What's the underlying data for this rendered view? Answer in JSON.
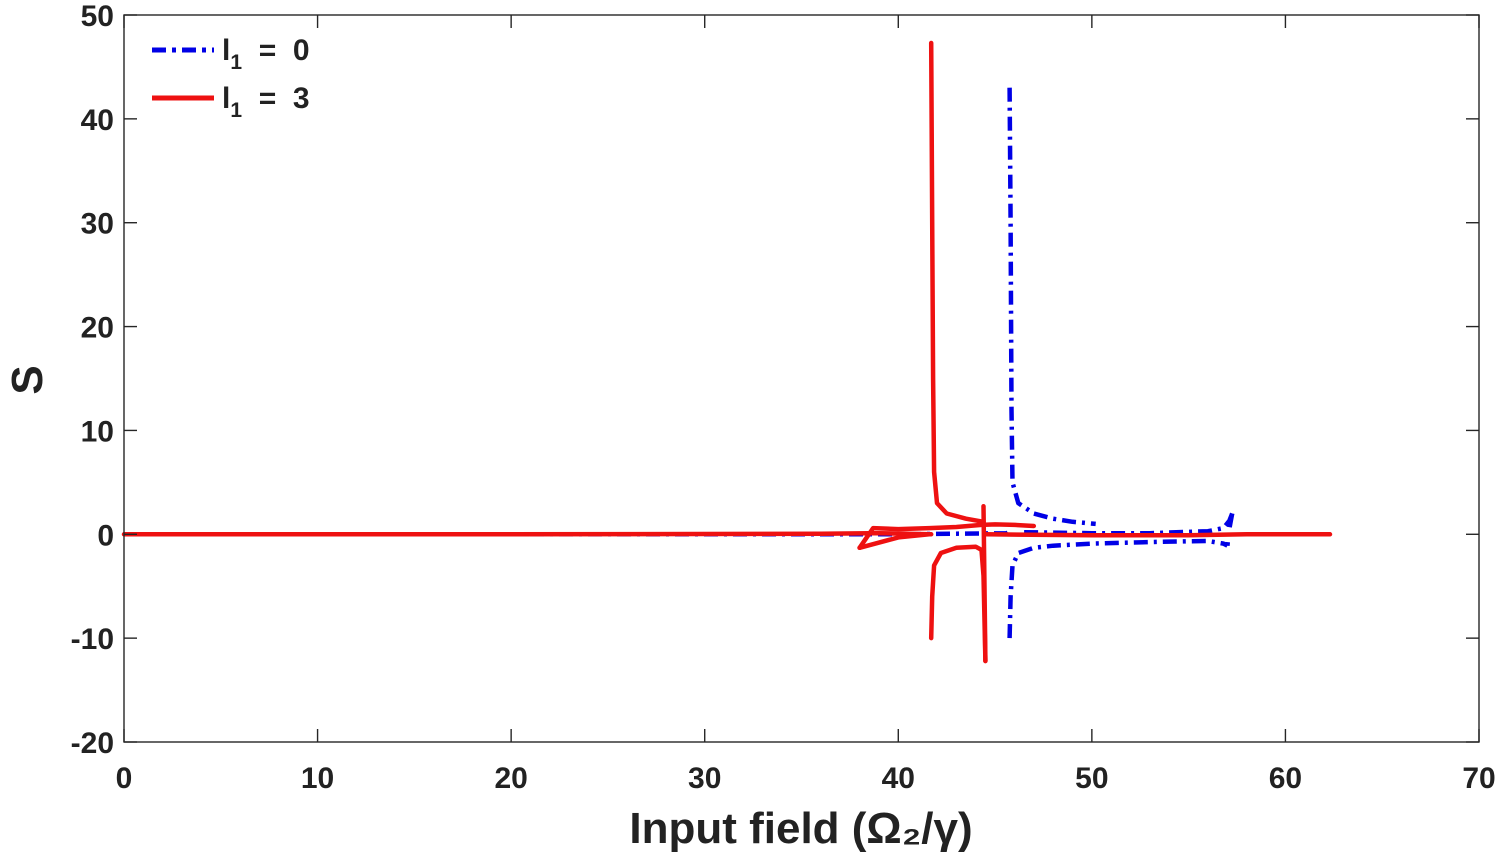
{
  "chart_data": {
    "type": "line",
    "title": "",
    "xlabel": "Input  field  (Ω₂/γ)",
    "ylabel": "S",
    "xlim": [
      0,
      70
    ],
    "ylim": [
      -20,
      50
    ],
    "xticks": [
      0,
      10,
      20,
      30,
      40,
      50,
      60,
      70
    ],
    "yticks": [
      -20,
      -10,
      0,
      10,
      20,
      30,
      40,
      50
    ],
    "xtick_labels": [
      "0",
      "10",
      "20",
      "30",
      "40",
      "50",
      "60",
      "70"
    ],
    "ytick_labels": [
      "-20",
      "-10",
      "0",
      "10",
      "20",
      "30",
      "40",
      "50"
    ],
    "grid": false,
    "legend_position": "top-left",
    "series": [
      {
        "name": "l1 = 0",
        "legend": {
          "var": "l",
          "sub": "1",
          "rest": "  =  0"
        },
        "color": "#0000e6",
        "style": "dashdot",
        "segments": [
          [
            [
              0,
              0
            ],
            [
              20,
              0
            ],
            [
              40,
              0
            ],
            [
              45.6,
              0.1
            ],
            [
              45.85,
              0.4
            ]
          ],
          [
            [
              45.75,
              43
            ],
            [
              45.8,
              30
            ],
            [
              45.85,
              12
            ],
            [
              45.9,
              5
            ],
            [
              46.2,
              3
            ],
            [
              47,
              2
            ],
            [
              48,
              1.5
            ],
            [
              49,
              1.2
            ],
            [
              50.2,
              1
            ]
          ],
          [
            [
              45.75,
              -10
            ],
            [
              45.8,
              -6
            ],
            [
              45.9,
              -3
            ],
            [
              46.2,
              -1.8
            ],
            [
              47,
              -1.3
            ],
            [
              48,
              -1.1
            ],
            [
              50,
              -0.9
            ],
            [
              52,
              -0.8
            ],
            [
              54,
              -0.7
            ],
            [
              56,
              -0.65
            ],
            [
              56.8,
              -0.9
            ],
            [
              57.0,
              -1.1
            ]
          ],
          [
            [
              46.5,
              0.2
            ],
            [
              50,
              0.1
            ],
            [
              53,
              0.1
            ],
            [
              56,
              0.3
            ],
            [
              56.8,
              0.6
            ],
            [
              57.1,
              1.3
            ],
            [
              57.25,
              2
            ]
          ],
          [
            [
              57.25,
              2
            ],
            [
              57.1,
              0.5
            ],
            [
              57.0,
              -1.1
            ]
          ]
        ]
      },
      {
        "name": "l1 = 3",
        "legend": {
          "var": "l",
          "sub": "1",
          "rest": "  =  3"
        },
        "color": "#ee1111",
        "style": "solid",
        "segments": [
          [
            [
              0,
              0
            ],
            [
              20,
              0
            ],
            [
              36,
              0.05
            ],
            [
              38.5,
              0.1
            ],
            [
              39,
              0.1
            ],
            [
              41.7,
              0
            ]
          ],
          [
            [
              38,
              -1.3
            ],
            [
              38.7,
              0.6
            ],
            [
              40,
              0.5
            ],
            [
              41.6,
              0.6
            ],
            [
              43,
              0.7
            ],
            [
              44.3,
              0.9
            ],
            [
              45,
              0.95
            ],
            [
              46,
              0.9
            ],
            [
              47,
              0.8
            ]
          ],
          [
            [
              38,
              -1.3
            ],
            [
              40,
              -0.3
            ],
            [
              41.6,
              0
            ]
          ],
          [
            [
              41.7,
              47.3
            ],
            [
              41.75,
              30
            ],
            [
              41.8,
              15
            ],
            [
              41.85,
              6
            ],
            [
              42,
              3
            ],
            [
              42.5,
              2
            ],
            [
              43.5,
              1.5
            ],
            [
              44.4,
              1.2
            ]
          ],
          [
            [
              41.7,
              -10
            ],
            [
              41.75,
              -6
            ],
            [
              41.85,
              -3
            ],
            [
              42.2,
              -1.8
            ],
            [
              43,
              -1.3
            ],
            [
              44,
              -1.2
            ],
            [
              44.3,
              -1.5
            ],
            [
              44.4,
              -4
            ],
            [
              44.5,
              -12.2
            ]
          ],
          [
            [
              44.4,
              2.7
            ],
            [
              44.5,
              -12.2
            ]
          ],
          [
            [
              44.5,
              0
            ],
            [
              50,
              -0.1
            ],
            [
              55,
              -0.1
            ],
            [
              58,
              0
            ],
            [
              62.3,
              0
            ]
          ]
        ]
      }
    ]
  }
}
